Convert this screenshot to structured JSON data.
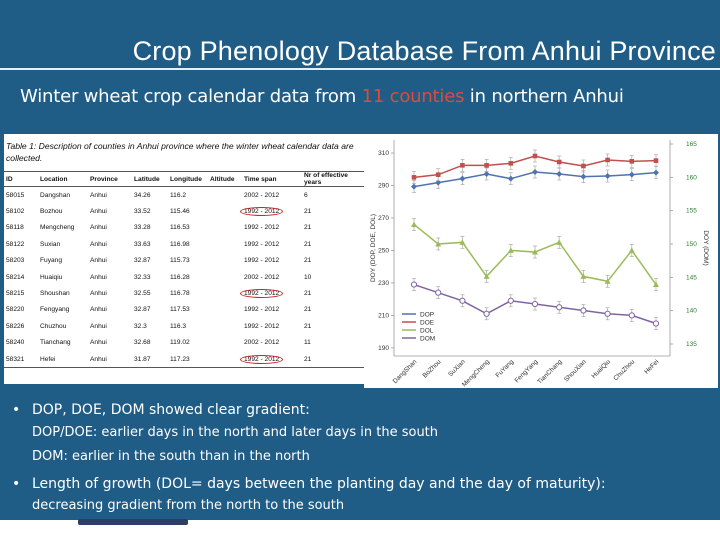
{
  "slide": {
    "title": "Crop Phenology Database From Anhui Province",
    "subtitle_pre": "Winter wheat crop calendar data from ",
    "subtitle_highlight": "11 counties",
    "subtitle_post": " in northern Anhui"
  },
  "table": {
    "caption": "Table 1: Description of counties in Anhui province where the winter wheat calendar data are collected.",
    "headers": [
      "ID",
      "Location",
      "Province",
      "Latitude",
      "Longitude",
      "Altitude",
      "Time span",
      "Nr of effective years"
    ],
    "rows": [
      [
        "58015",
        "Dangshan",
        "Anhui",
        "34.26",
        "116.2",
        "",
        "2002 - 2012",
        "6"
      ],
      [
        "58102",
        "Bozhou",
        "Anhui",
        "33.52",
        "115.46",
        "",
        "1992 - 2012",
        "21"
      ],
      [
        "58118",
        "Mengcheng",
        "Anhui",
        "33.28",
        "116.53",
        "",
        "1992 - 2012",
        "21"
      ],
      [
        "58122",
        "Suxian",
        "Anhui",
        "33.63",
        "116.98",
        "",
        "1992 - 2012",
        "21"
      ],
      [
        "58203",
        "Fuyang",
        "Anhui",
        "32.87",
        "115.73",
        "",
        "1992 - 2012",
        "21"
      ],
      [
        "58214",
        "Huaiqiu",
        "Anhui",
        "32.33",
        "116.28",
        "",
        "2002 - 2012",
        "10"
      ],
      [
        "58215",
        "Shoushan",
        "Anhui",
        "32.55",
        "116.78",
        "",
        "1992 - 2012",
        "21"
      ],
      [
        "58220",
        "Fengyang",
        "Anhui",
        "32.87",
        "117.53",
        "",
        "1992 - 2012",
        "21"
      ],
      [
        "58226",
        "Chuzhou",
        "Anhui",
        "32.3",
        "116.3",
        "",
        "1992 - 2012",
        "21"
      ],
      [
        "58240",
        "Tianchang",
        "Anhui",
        "32.68",
        "119.02",
        "",
        "2002 - 2012",
        "11"
      ],
      [
        "58321",
        "Hefei",
        "Anhui",
        "31.87",
        "117.23",
        "",
        "1992 - 2012",
        "21"
      ]
    ],
    "circled_rows": [
      1,
      6,
      10
    ]
  },
  "chart_data": {
    "type": "line",
    "title": "",
    "x": [
      "DangShan",
      "BoZhou",
      "SuXian",
      "MengCheng",
      "FuYang",
      "FengYang",
      "TianChang",
      "ShouXian",
      "HuaiQiu",
      "ChuZhou",
      "HeFei"
    ],
    "xlabel": "",
    "ylabel_left": "DOY (DOP, DOE, DOL)",
    "ylabel_right": "DOY (DOM)",
    "left_axis": {
      "ticks": [
        190,
        210,
        230,
        250,
        270,
        290,
        310
      ],
      "range": [
        185,
        318
      ]
    },
    "right_axis": {
      "ticks": [
        135,
        140,
        145,
        150,
        155,
        160,
        165
      ],
      "range": [
        133.2,
        165.6
      ]
    },
    "series": [
      {
        "name": "DOP",
        "axis": "right",
        "color": "#4f73b0",
        "marker": "diamond",
        "values": [
          158.6,
          159.2,
          159.8,
          160.5,
          159.8,
          160.8,
          160.5,
          160.1,
          160.2,
          160.4,
          160.7
        ]
      },
      {
        "name": "DOE",
        "axis": "right",
        "color": "#c0504d",
        "marker": "square",
        "values": [
          160.0,
          160.4,
          161.8,
          161.8,
          162.1,
          163.2,
          162.3,
          161.7,
          162.6,
          162.4,
          162.5
        ]
      },
      {
        "name": "DOL",
        "axis": "left",
        "color": "#9bbb59",
        "marker": "triangle",
        "values": [
          266,
          254,
          255,
          234,
          250,
          249,
          255,
          234,
          231,
          250,
          229
        ]
      },
      {
        "name": "DOM",
        "axis": "left",
        "color": "#8064a2",
        "marker": "circle",
        "values": [
          229,
          224,
          219,
          211,
          219,
          217,
          215,
          213,
          211,
          210,
          205
        ]
      }
    ],
    "legend": [
      "DOP",
      "DOE",
      "DOL",
      "DOM"
    ],
    "legend_position": "bottom-left",
    "grid": false
  },
  "bullets": {
    "b1": "DOP, DOE, DOM showed clear gradient:",
    "s1": "DOP/DOE: earlier days in the north and later days in the south",
    "s2": "DOM: earlier in the south than in the north",
    "b2": "Length of growth (DOL= days between the planting day and the day of maturity):",
    "s3": "decreasing gradient from the north to the south",
    "bullet_glyph": "•"
  },
  "colors": {
    "background": "#1f5c86",
    "highlight": "#e04a3a",
    "circle": "#d02020"
  }
}
